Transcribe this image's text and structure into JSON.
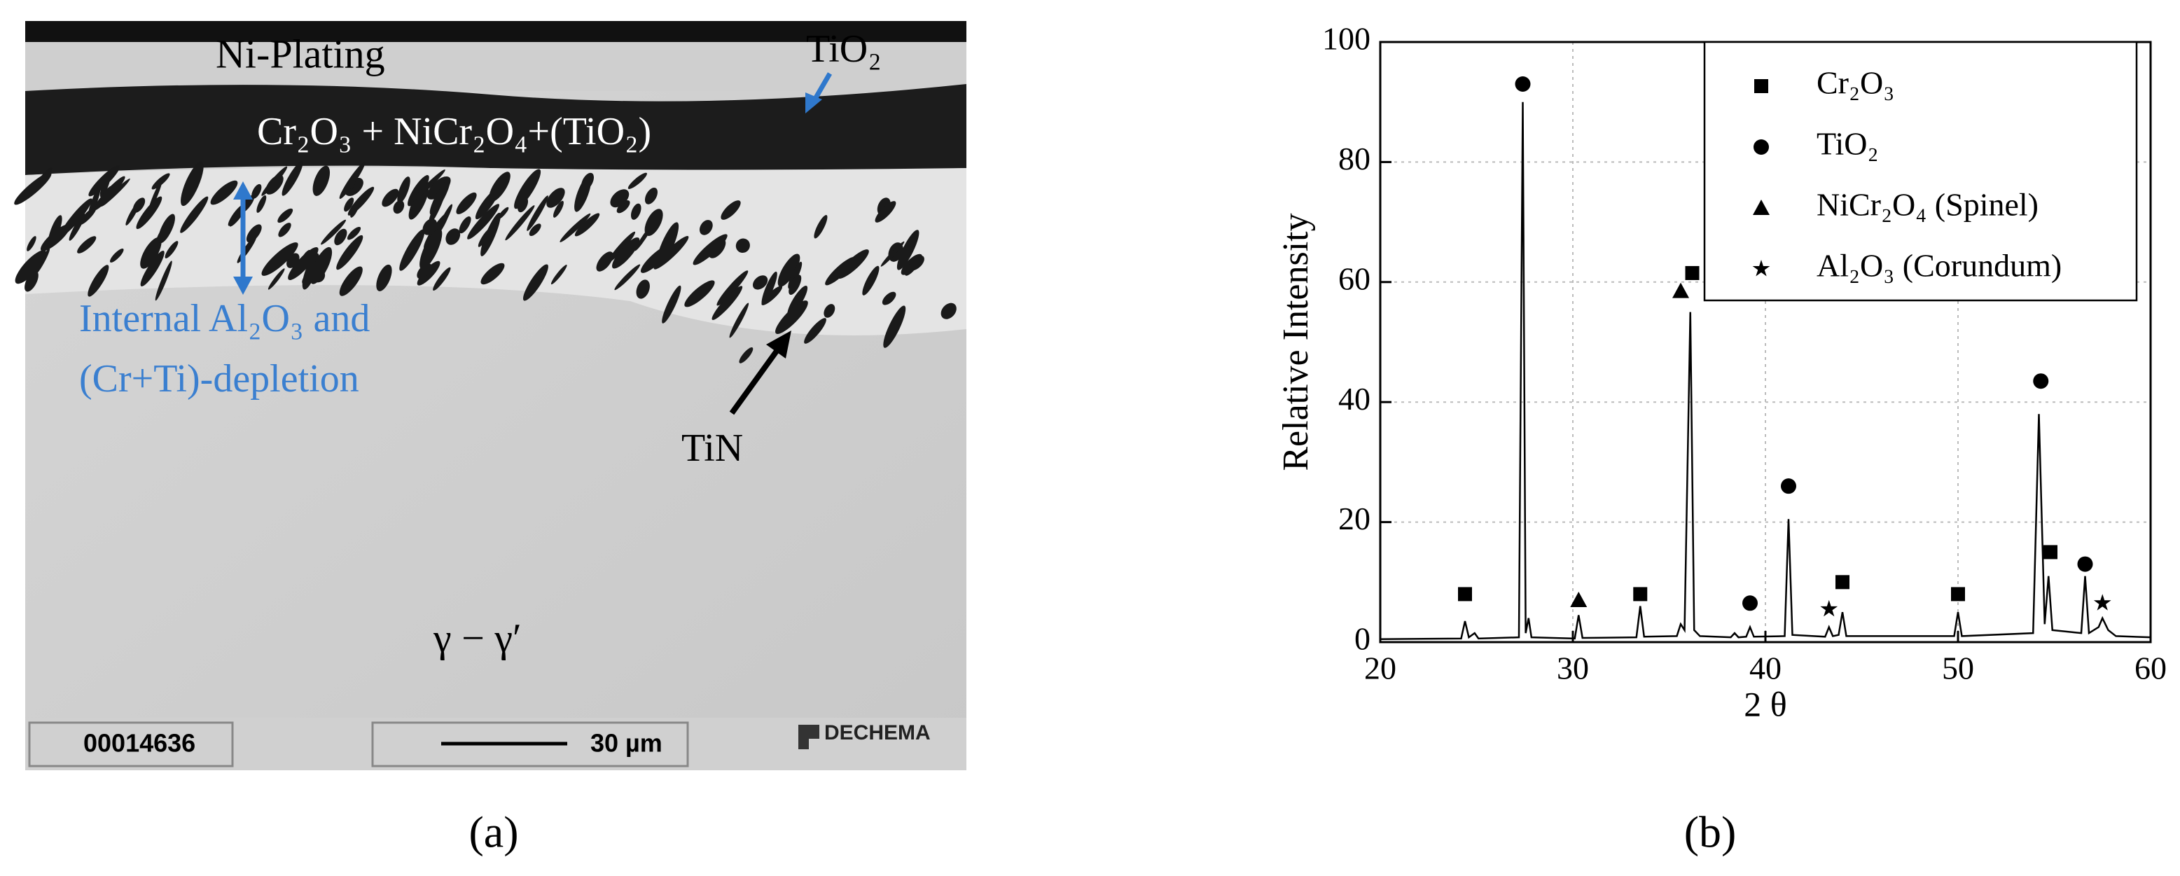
{
  "panel_a": {
    "labels": {
      "plating": "Ni-Plating",
      "tio2": "TiO₂",
      "oxide": "Cr₂O₃ + NiCr₂O₄+(TiO₂)",
      "internal_1": "Internal Al₂O₃ and",
      "internal_2": "(Cr+Ti)-depletion",
      "tin": "TiN",
      "matrix": "γ − γ′"
    },
    "footer": {
      "id": "00014636",
      "scale": "30 µm",
      "logo": "DECHEMA"
    }
  },
  "captions": [
    "(a)",
    "(b)"
  ],
  "chart_data": {
    "type": "line",
    "xlabel": "2 θ",
    "ylabel": "Relative Intensity",
    "xlim": [
      20,
      60
    ],
    "ylim": [
      0,
      100
    ],
    "xticks": [
      20,
      30,
      40,
      50,
      60
    ],
    "yticks": [
      0,
      20,
      40,
      60,
      80,
      100
    ],
    "grid": true,
    "legend": "upper right",
    "color": "#000000",
    "x": [
      20,
      24.2,
      24.4,
      24.6,
      24.9,
      25.1,
      27.2,
      27.4,
      27.55,
      27.7,
      27.85,
      30.1,
      30.3,
      30.5,
      33.3,
      33.5,
      33.7,
      35.4,
      35.6,
      35.8,
      36.1,
      36.3,
      36.6,
      38.2,
      38.4,
      38.6,
      39.0,
      39.2,
      39.4,
      41.0,
      41.2,
      41.4,
      43.1,
      43.3,
      43.5,
      43.8,
      44.0,
      44.2,
      49.8,
      50.0,
      50.2,
      53.9,
      54.2,
      54.5,
      54.7,
      54.9,
      56.4,
      56.6,
      56.8,
      57.3,
      57.5,
      57.8,
      58.2,
      60
    ],
    "values": [
      0.5,
      0.6,
      3.5,
      0.8,
      1.5,
      0.6,
      0.8,
      90,
      1.5,
      4,
      0.8,
      0.6,
      4.5,
      0.7,
      0.8,
      6,
      0.9,
      1,
      3,
      2,
      55,
      2,
      1,
      0.8,
      1.5,
      0.8,
      0.9,
      2.5,
      0.9,
      1,
      20.5,
      1.2,
      0.9,
      2.5,
      1,
      1.2,
      5,
      1,
      1,
      5,
      1,
      1.5,
      38,
      3,
      11,
      2,
      1.5,
      11,
      1.5,
      2.5,
      4,
      2,
      1,
      0.8
    ],
    "phases": [
      {
        "name": "Cr₂O₃",
        "marker": "square",
        "x": [
          24.4,
          33.5,
          36.2,
          44.0,
          50.0,
          54.8
        ],
        "y": [
          8,
          8,
          61.5,
          10,
          8,
          15
        ]
      },
      {
        "name": "TiO₂",
        "marker": "circle",
        "x": [
          27.4,
          39.2,
          41.2,
          54.3,
          56.6
        ],
        "y": [
          93,
          6.5,
          26,
          43.5,
          13
        ]
      },
      {
        "name": "NiCr₂O₄ (Spinel)",
        "marker": "triangle",
        "x": [
          30.3,
          35.6
        ],
        "y": [
          7,
          58.5
        ]
      },
      {
        "name": "Al₂O₃ (Corundum)",
        "marker": "star",
        "x": [
          43.3,
          57.5
        ],
        "y": [
          5.5,
          6.5
        ]
      }
    ]
  }
}
